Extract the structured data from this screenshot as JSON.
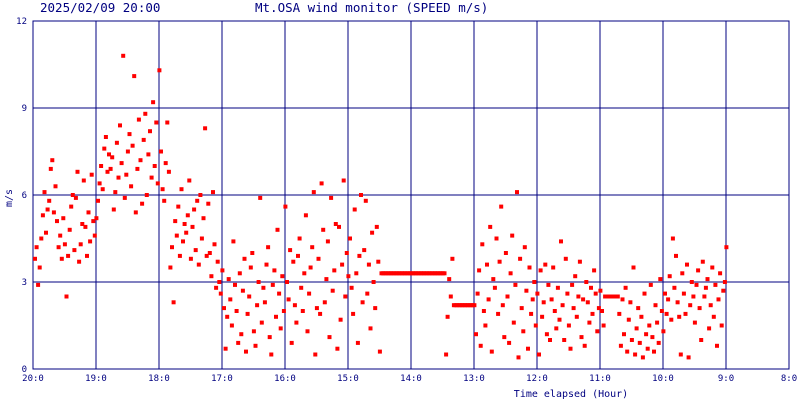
{
  "header": {
    "timestamp": "2025/02/09 20:00",
    "title": "Mt.OSA wind monitor (SPEED m/s)"
  },
  "colors": {
    "grid": "#000080",
    "points": "#ff0000",
    "background": "#ffffff",
    "text": "#000080"
  },
  "chart_data": {
    "type": "scatter",
    "title": "Mt.OSA wind monitor (SPEED m/s)",
    "xlabel": "Time elapsed (Hour)",
    "ylabel": "m/s",
    "xlim": [
      20,
      8
    ],
    "ylim": [
      0,
      12
    ],
    "x_tick_labels": [
      "20:0",
      "19:0",
      "18:0",
      "17:0",
      "16:0",
      "15:0",
      "14:0",
      "13:0",
      "12:0",
      "11:0",
      "10:0",
      "9:0",
      "8:0"
    ],
    "y_tick_labels": [
      "0",
      "3",
      "6",
      "9",
      "12"
    ],
    "grid": true,
    "points_per_hour": 40,
    "values": [
      3.8,
      4.2,
      2.9,
      3.5,
      4.5,
      5.3,
      6.1,
      4.7,
      5.5,
      5.8,
      6.9,
      7.2,
      5.4,
      6.3,
      5.1,
      4.2,
      4.6,
      3.8,
      5.2,
      4.3,
      2.5,
      3.9,
      4.8,
      5.6,
      6.0,
      4.1,
      5.9,
      6.8,
      3.7,
      4.3,
      5.0,
      6.5,
      4.9,
      3.9,
      5.4,
      4.4,
      6.7,
      5.1,
      4.6,
      5.2,
      5.8,
      6.4,
      7.0,
      6.2,
      7.6,
      8.0,
      6.8,
      7.4,
      6.9,
      7.3,
      5.5,
      6.1,
      7.8,
      6.6,
      8.4,
      7.1,
      10.8,
      5.9,
      6.7,
      7.5,
      8.1,
      6.3,
      7.7,
      10.1,
      5.4,
      6.9,
      8.6,
      7.2,
      5.7,
      7.9,
      8.8,
      6.0,
      7.4,
      8.2,
      6.6,
      9.2,
      7.0,
      8.5,
      6.4,
      10.3,
      7.5,
      6.2,
      5.8,
      7.1,
      8.5,
      6.8,
      3.5,
      4.2,
      2.3,
      5.1,
      4.6,
      5.6,
      3.9,
      6.2,
      4.4,
      5.0,
      4.7,
      5.3,
      6.5,
      3.8,
      4.9,
      5.5,
      4.1,
      5.8,
      3.6,
      6.0,
      4.5,
      5.2,
      8.3,
      3.9,
      5.7,
      4.0,
      3.2,
      6.1,
      4.3,
      2.8,
      3.7,
      3.0,
      2.6,
      3.4,
      2.1,
      0.7,
      1.8,
      3.1,
      2.4,
      1.5,
      4.4,
      2.9,
      2.0,
      0.9,
      3.3,
      1.2,
      2.7,
      3.8,
      0.6,
      1.9,
      2.5,
      3.5,
      4.0,
      1.3,
      0.8,
      2.2,
      3.0,
      5.9,
      1.6,
      2.8,
      2.3,
      3.6,
      4.2,
      1.1,
      0.5,
      2.9,
      3.4,
      1.8,
      4.8,
      2.6,
      1.4,
      3.2,
      2.0,
      5.6,
      3.0,
      2.4,
      4.1,
      0.9,
      3.7,
      2.2,
      1.6,
      3.9,
      4.5,
      2.8,
      2.0,
      3.3,
      5.3,
      1.3,
      2.6,
      3.5,
      4.2,
      6.1,
      0.5,
      2.1,
      3.8,
      1.9,
      6.4,
      4.8,
      2.3,
      3.1,
      4.4,
      1.1,
      5.9,
      2.7,
      3.4,
      5.0,
      0.7,
      4.9,
      1.7,
      3.6,
      6.5,
      2.5,
      4.0,
      3.2,
      4.5,
      2.8,
      1.9,
      5.5,
      3.3,
      0.9,
      3.9,
      6.0,
      2.3,
      4.1,
      5.8,
      2.6,
      3.6,
      1.4,
      4.7,
      3.0,
      2.1,
      4.9,
      3.7,
      0.6,
      3.3,
      3.3,
      3.3,
      3.3,
      3.3,
      3.3,
      3.3,
      3.3,
      3.3,
      3.3,
      3.3,
      3.3,
      3.3,
      3.3,
      3.3,
      3.3,
      3.3,
      3.3,
      3.3,
      3.3,
      3.3,
      3.3,
      3.3,
      3.3,
      3.3,
      3.3,
      3.3,
      3.3,
      3.3,
      3.3,
      3.3,
      3.3,
      3.3,
      3.3,
      3.3,
      3.3,
      3.3,
      3.3,
      3.3,
      3.3,
      3.3,
      0.5,
      1.8,
      3.1,
      2.5,
      3.8,
      2.2,
      2.2,
      2.2,
      2.2,
      2.2,
      2.2,
      2.2,
      2.2,
      2.2,
      2.2,
      2.2,
      2.2,
      2.2,
      2.2,
      1.2,
      2.6,
      3.4,
      0.8,
      4.3,
      2.0,
      1.5,
      3.6,
      2.4,
      4.9,
      0.6,
      3.1,
      2.8,
      4.5,
      1.9,
      3.7,
      5.6,
      2.2,
      1.1,
      4.0,
      2.5,
      0.9,
      3.3,
      4.6,
      1.6,
      2.9,
      6.1,
      0.4,
      3.8,
      2.1,
      1.3,
      4.2,
      2.7,
      0.7,
      3.5,
      1.9,
      2.4,
      3.0,
      1.5,
      2.6,
      0.5,
      3.4,
      1.8,
      2.3,
      3.6,
      1.2,
      2.9,
      1.0,
      2.4,
      3.5,
      2.0,
      1.4,
      2.8,
      1.7,
      4.4,
      2.2,
      1.0,
      3.8,
      2.6,
      1.5,
      0.7,
      2.9,
      2.1,
      3.2,
      1.8,
      2.5,
      3.7,
      1.1,
      2.4,
      0.8,
      3.0,
      2.3,
      1.6,
      2.8,
      1.9,
      3.4,
      2.6,
      1.3,
      2.1,
      2.7,
      2.0,
      1.5,
      2.5,
      2.5,
      2.5,
      2.5,
      2.5,
      2.5,
      2.5,
      2.5,
      2.5,
      1.9,
      0.8,
      2.4,
      1.2,
      2.8,
      0.6,
      1.7,
      2.3,
      1.0,
      3.5,
      0.5,
      1.4,
      2.1,
      0.9,
      1.8,
      0.4,
      2.6,
      1.2,
      0.7,
      1.5,
      2.9,
      1.1,
      0.6,
      2.2,
      1.6,
      0.9,
      3.1,
      2.0,
      1.3,
      2.6,
      1.9,
      2.4,
      3.2,
      1.7,
      4.5,
      2.8,
      3.9,
      2.3,
      1.8,
      0.5,
      3.3,
      2.6,
      1.9,
      3.6,
      0.4,
      2.2,
      3.0,
      2.5,
      1.6,
      2.9,
      3.4,
      2.1,
      1.0,
      3.7,
      2.5,
      2.8,
      3.1,
      1.4,
      2.2,
      3.5,
      1.8,
      2.9,
      0.8,
      2.4,
      3.3,
      1.5,
      2.7,
      3.0,
      4.2
    ]
  }
}
